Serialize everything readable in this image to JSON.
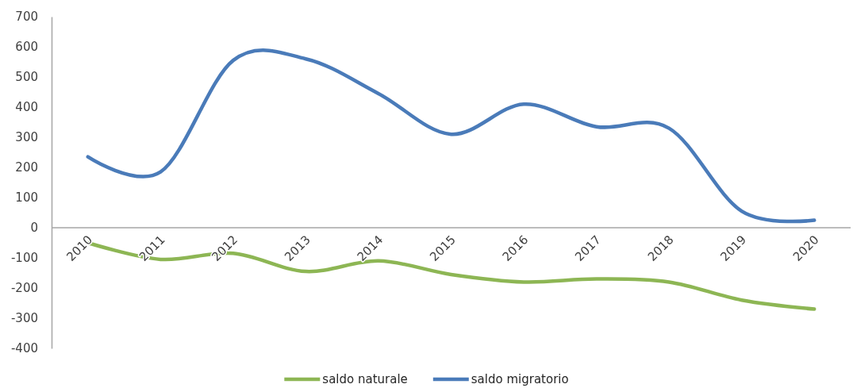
{
  "chart_data": {
    "type": "line",
    "categories": [
      "2010",
      "2011",
      "2012",
      "2013",
      "2014",
      "2015",
      "2016",
      "2017",
      "2018",
      "2019",
      "2020"
    ],
    "series": [
      {
        "name": "saldo naturale",
        "color": "#8db654",
        "values": [
          -50,
          -105,
          -85,
          -145,
          -110,
          -155,
          -180,
          -170,
          -180,
          -240,
          -270
        ]
      },
      {
        "name": "saldo migratorio",
        "color": "#4a7bb9",
        "values": [
          235,
          185,
          555,
          560,
          445,
          310,
          410,
          335,
          330,
          55,
          25
        ]
      }
    ],
    "ylim": [
      -400,
      700
    ],
    "yticks": [
      -400,
      -300,
      -200,
      -100,
      0,
      100,
      200,
      300,
      400,
      500,
      600,
      700
    ],
    "legend": "bottom"
  }
}
